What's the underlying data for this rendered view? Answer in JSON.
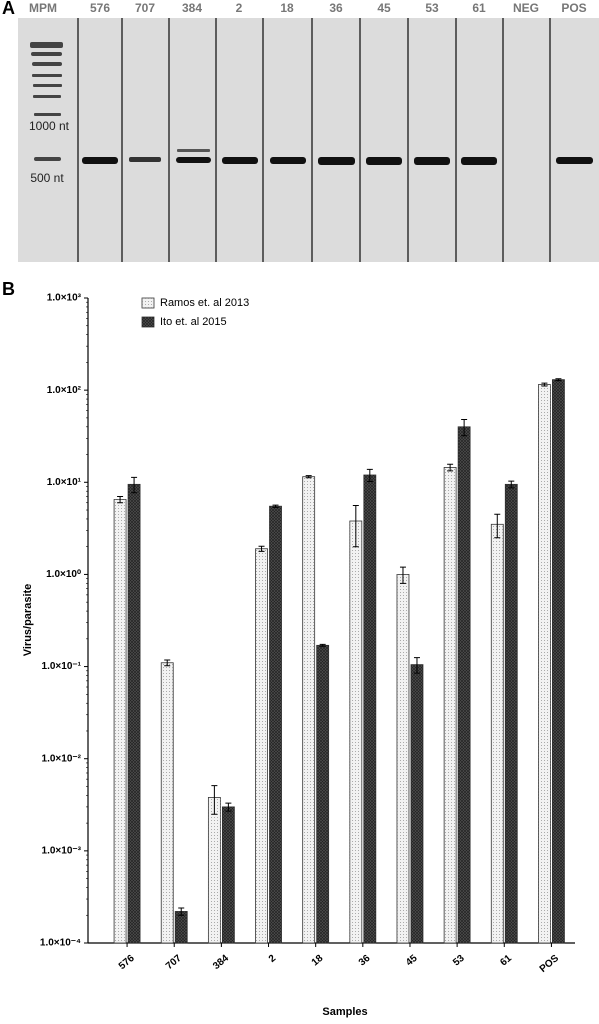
{
  "gel": {
    "panel": "A",
    "lanes": [
      "MPM",
      "576",
      "707",
      "384",
      "2",
      "18",
      "36",
      "45",
      "53",
      "61",
      "NEG",
      "POS"
    ],
    "markers": [
      "1000 nt",
      "500 nt"
    ]
  },
  "chart_data": {
    "type": "bar",
    "panel": "B",
    "xlabel": "Samples",
    "ylabel": "Virus/parasite",
    "categories": [
      "576",
      "707",
      "384",
      "2",
      "18",
      "36",
      "45",
      "53",
      "61",
      "POS"
    ],
    "series": [
      {
        "name": "Ramos et. al 2013",
        "color": "#f2f2f2",
        "values": [
          6.5,
          0.11,
          0.0038,
          1.9,
          11.5,
          3.8,
          1.0,
          14.5,
          3.5,
          115
        ],
        "errors": [
          0.5,
          0.008,
          0.0013,
          0.12,
          0.3,
          1.8,
          0.2,
          1.2,
          1.0,
          4
        ]
      },
      {
        "name": "Ito et. al 2015",
        "color": "#505050",
        "values": [
          9.5,
          0.00022,
          0.003,
          5.5,
          0.17,
          12,
          0.105,
          40,
          9.5,
          130
        ],
        "errors": [
          1.8,
          2e-05,
          0.0003,
          0.15,
          0.004,
          1.8,
          0.02,
          8,
          0.8,
          3
        ]
      }
    ],
    "log_scale": true,
    "ylim": [
      0.0001,
      1000
    ],
    "yticks": [
      {
        "value": 0.0001,
        "label": "1.0×10⁻⁴"
      },
      {
        "value": 0.001,
        "label": "1.0×10⁻³"
      },
      {
        "value": 0.01,
        "label": "1.0×10⁻²"
      },
      {
        "value": 0.1,
        "label": "1.0×10⁻¹"
      },
      {
        "value": 1,
        "label": "1.0×10⁰"
      },
      {
        "value": 10,
        "label": "1.0×10¹"
      },
      {
        "value": 100,
        "label": "1.0×10²"
      },
      {
        "value": 1000,
        "label": "1.0×10³"
      }
    ],
    "legend": "top-left"
  }
}
